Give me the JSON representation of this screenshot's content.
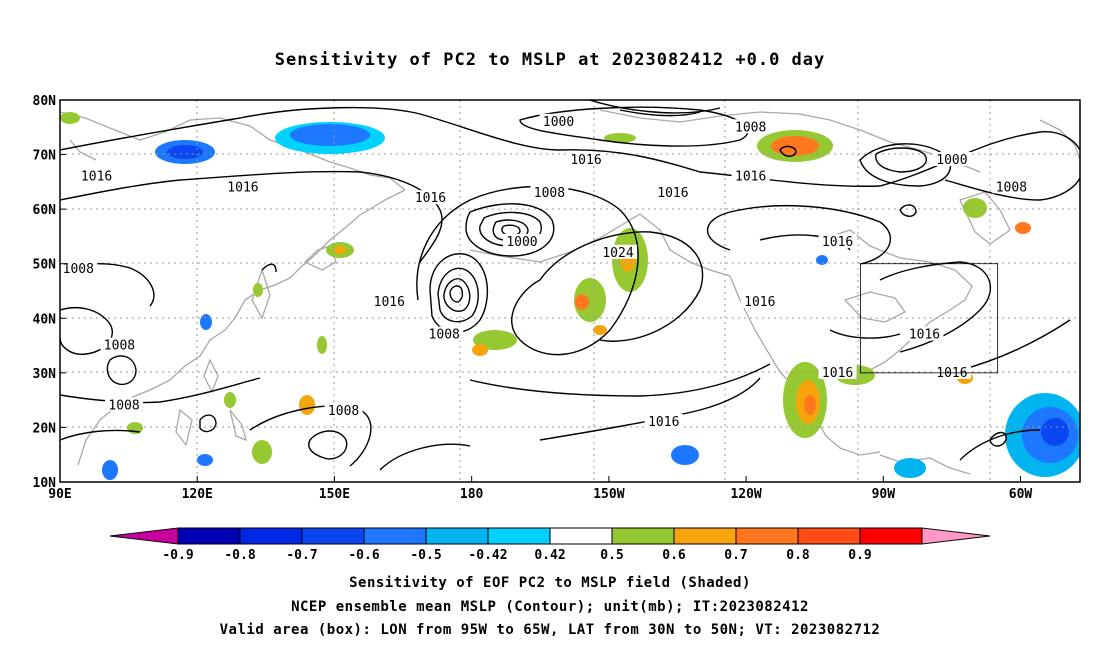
{
  "title": "Sensitivity of PC2 to MSLP at 2023082412 +0.0 day",
  "map": {
    "lon_ticks": [
      {
        "lon": 90,
        "label": "90E"
      },
      {
        "lon": 120,
        "label": "120E"
      },
      {
        "lon": 150,
        "label": "150E"
      },
      {
        "lon": 180,
        "label": "180"
      },
      {
        "lon": 210,
        "label": "150W"
      },
      {
        "lon": 240,
        "label": "120W"
      },
      {
        "lon": 270,
        "label": "90W"
      },
      {
        "lon": 300,
        "label": "60W"
      }
    ],
    "lat_ticks": [
      {
        "lat": 80,
        "label": "80N"
      },
      {
        "lat": 70,
        "label": "70N"
      },
      {
        "lat": 60,
        "label": "60N"
      },
      {
        "lat": 50,
        "label": "50N"
      },
      {
        "lat": 40,
        "label": "40N"
      },
      {
        "lat": 30,
        "label": "30N"
      },
      {
        "lat": 20,
        "label": "20N"
      },
      {
        "lat": 10,
        "label": "10N"
      }
    ],
    "lon_range": [
      90,
      313
    ],
    "lat_range": [
      10,
      80
    ],
    "grid": true,
    "valid_box": {
      "lon": [
        265,
        295
      ],
      "lat": [
        30,
        50
      ]
    },
    "contour_labels": [
      {
        "text": "1000",
        "lon": 199,
        "lat": 76
      },
      {
        "text": "1008",
        "lon": 241,
        "lat": 75
      },
      {
        "text": "1016",
        "lon": 205,
        "lat": 69
      },
      {
        "text": "1016",
        "lon": 98,
        "lat": 66
      },
      {
        "text": "1016",
        "lon": 130,
        "lat": 64
      },
      {
        "text": "1016",
        "lon": 171,
        "lat": 62
      },
      {
        "text": "1008",
        "lon": 197,
        "lat": 63
      },
      {
        "text": "1016",
        "lon": 224,
        "lat": 63
      },
      {
        "text": "1016",
        "lon": 241,
        "lat": 66
      },
      {
        "text": "1000",
        "lon": 285,
        "lat": 69
      },
      {
        "text": "1008",
        "lon": 298,
        "lat": 64
      },
      {
        "text": "1000",
        "lon": 191,
        "lat": 54
      },
      {
        "text": "1024",
        "lon": 212,
        "lat": 52
      },
      {
        "text": "1016",
        "lon": 260,
        "lat": 54
      },
      {
        "text": "1008",
        "lon": 94,
        "lat": 49
      },
      {
        "text": "1016",
        "lon": 162,
        "lat": 43
      },
      {
        "text": "1008",
        "lon": 174,
        "lat": 37
      },
      {
        "text": "1016",
        "lon": 243,
        "lat": 43
      },
      {
        "text": "1016",
        "lon": 279,
        "lat": 37
      },
      {
        "text": "1008",
        "lon": 103,
        "lat": 35
      },
      {
        "text": "1016",
        "lon": 285,
        "lat": 30
      },
      {
        "text": "1016",
        "lon": 260,
        "lat": 30
      },
      {
        "text": "1008",
        "lon": 104,
        "lat": 24
      },
      {
        "text": "1008",
        "lon": 152,
        "lat": 23
      },
      {
        "text": "1016",
        "lon": 222,
        "lat": 21
      }
    ]
  },
  "colorbar": {
    "levels": [
      "-0.9",
      "-0.8",
      "-0.7",
      "-0.6",
      "-0.5",
      "-0.42",
      "0.42",
      "0.5",
      "0.6",
      "0.7",
      "0.8",
      "0.9"
    ],
    "colors": [
      "#c8009e",
      "#0000b4",
      "#0026e6",
      "#0a46f2",
      "#1e78ff",
      "#00b4f0",
      "#00d2ff",
      "#ffffff",
      "#96c832",
      "#f5a50a",
      "#ff781e",
      "#ff4b14",
      "#ff0000",
      "#ff9ac8"
    ]
  },
  "captions": {
    "line1": "Sensitivity of EOF PC2 to MSLP field (Shaded)",
    "line2": "NCEP ensemble mean MSLP (Contour); unit(mb); IT:2023082412",
    "line3": "Valid area (box): LON from 95W to 65W, LAT from 30N to 50N; VT: 2023082712"
  }
}
